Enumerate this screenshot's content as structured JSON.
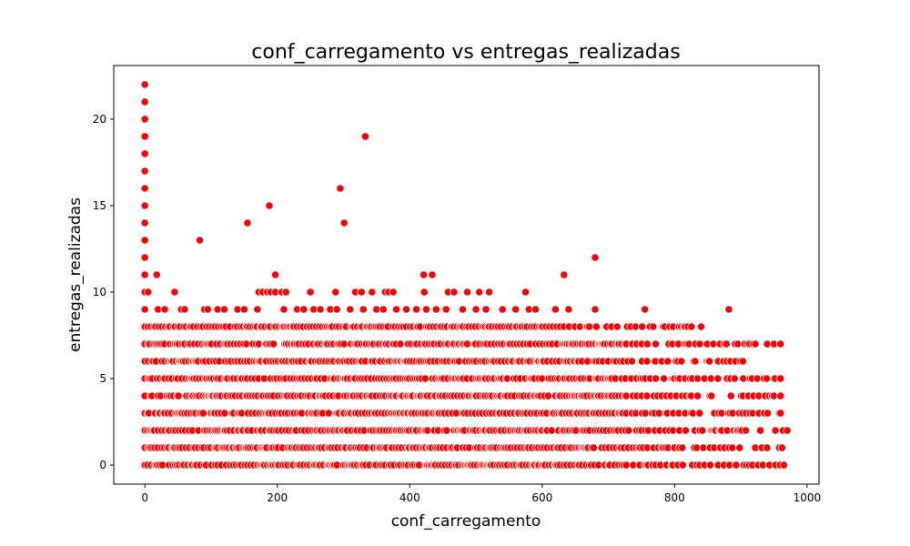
{
  "chart_data": {
    "type": "scatter",
    "title": "conf_carregamento vs entregas_realizadas",
    "xlabel": "conf_carregamento",
    "ylabel": "entregas_realizadas",
    "xlim": [
      -47,
      1018
    ],
    "ylim": [
      -1.1,
      23.1
    ],
    "x_ticks": [
      0,
      200,
      400,
      600,
      800,
      1000
    ],
    "y_ticks": [
      0,
      5,
      10,
      15,
      20
    ],
    "grid": false,
    "legend": "none",
    "marker_color": "#ff0000",
    "marker_edge_color": "#ffffff",
    "outliers": [
      {
        "x": 0,
        "y": 22
      },
      {
        "x": 0,
        "y": 21
      },
      {
        "x": 0,
        "y": 20
      },
      {
        "x": 0,
        "y": 19
      },
      {
        "x": 0,
        "y": 18
      },
      {
        "x": 0,
        "y": 17
      },
      {
        "x": 0,
        "y": 16
      },
      {
        "x": 0,
        "y": 15
      },
      {
        "x": 0,
        "y": 14
      },
      {
        "x": 0,
        "y": 13
      },
      {
        "x": 0,
        "y": 12
      },
      {
        "x": 0,
        "y": 11
      },
      {
        "x": 333,
        "y": 19
      },
      {
        "x": 295,
        "y": 16
      },
      {
        "x": 188,
        "y": 15
      },
      {
        "x": 155,
        "y": 14
      },
      {
        "x": 301,
        "y": 14
      },
      {
        "x": 83,
        "y": 13
      },
      {
        "x": 680,
        "y": 12
      },
      {
        "x": 18,
        "y": 11
      },
      {
        "x": 197,
        "y": 11
      },
      {
        "x": 421,
        "y": 11
      },
      {
        "x": 434,
        "y": 11
      },
      {
        "x": 633,
        "y": 11
      }
    ],
    "row_extents": [
      {
        "y": 10,
        "x_max": 575
      },
      {
        "y": 9,
        "x_max": 882
      },
      {
        "y": 8,
        "x_max": 840
      },
      {
        "y": 7,
        "x_max": 960
      },
      {
        "y": 6,
        "x_max": 915
      },
      {
        "y": 5,
        "x_max": 960
      },
      {
        "y": 4,
        "x_max": 960
      },
      {
        "y": 3,
        "x_max": 960
      },
      {
        "y": 2,
        "x_max": 970
      },
      {
        "y": 1,
        "x_max": 970
      },
      {
        "y": 0,
        "x_max": 965
      }
    ],
    "row_sparse": [
      {
        "y": 10,
        "x": [
          0,
          5,
          45,
          172,
          178,
          185,
          190,
          197,
          207,
          213,
          250,
          288,
          318,
          327,
          343,
          363,
          368,
          375,
          422,
          458,
          467,
          487,
          505,
          520,
          575
        ]
      },
      {
        "y": 9,
        "x": [
          0,
          20,
          30,
          55,
          60,
          90,
          95,
          110,
          120,
          140,
          150,
          170,
          210,
          230,
          240,
          255,
          265,
          280,
          290,
          310,
          330,
          350,
          360,
          380,
          395,
          410,
          425,
          440,
          455,
          480,
          500,
          515,
          540,
          560,
          580,
          590,
          620,
          640,
          680,
          755,
          882
        ]
      }
    ]
  }
}
